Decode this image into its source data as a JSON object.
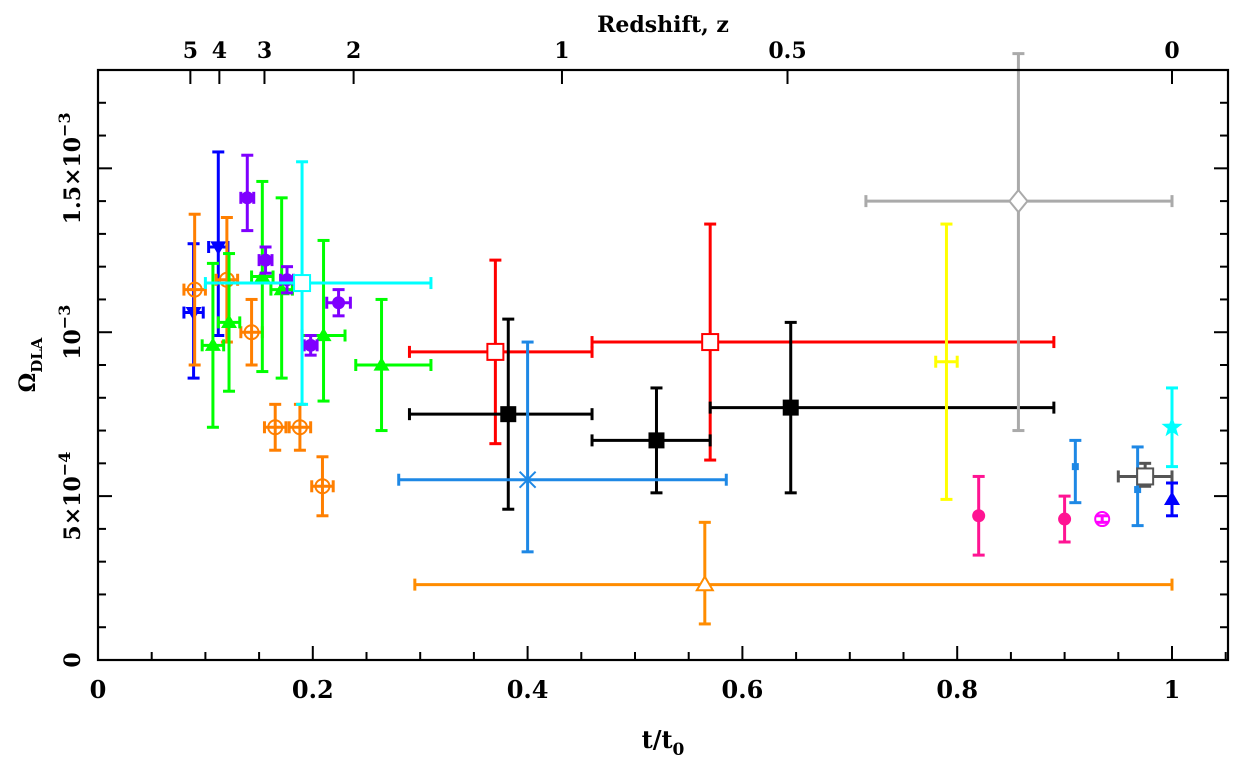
{
  "chart_data": {
    "type": "scatter",
    "title": "",
    "xlabel": "t/t",
    "xlabel_sub": "0",
    "ylabel": "Ω",
    "ylabel_sub": "DLA",
    "top_axis_label": "Redshift, z",
    "xlim": [
      0,
      1.05
    ],
    "ylim": [
      0,
      0.0018
    ],
    "grid": false,
    "legend": "none",
    "x_ticks": [
      {
        "value": 0,
        "label": "0"
      },
      {
        "value": 0.2,
        "label": "0.2"
      },
      {
        "value": 0.4,
        "label": "0.4"
      },
      {
        "value": 0.6,
        "label": "0.6"
      },
      {
        "value": 0.8,
        "label": "0.8"
      },
      {
        "value": 1.0,
        "label": "1"
      }
    ],
    "y_ticks": [
      {
        "value": 0,
        "base": "0",
        "exp": ""
      },
      {
        "value": 0.0005,
        "base": "5×10",
        "exp": "−4"
      },
      {
        "value": 0.001,
        "base": "10",
        "exp": "−3"
      },
      {
        "value": 0.0015,
        "base": "1.5×10",
        "exp": "−3"
      }
    ],
    "top_ticks": [
      {
        "t": 0.086,
        "label": "5"
      },
      {
        "t": 0.113,
        "label": "4"
      },
      {
        "t": 0.155,
        "label": "3"
      },
      {
        "t": 0.238,
        "label": "2"
      },
      {
        "t": 0.432,
        "label": "1"
      },
      {
        "t": 0.642,
        "label": "0.5"
      },
      {
        "t": 1.0,
        "label": "0"
      }
    ],
    "series": [
      {
        "color": "#0000ff",
        "marker": "tri-down-filled",
        "points": [
          {
            "x": 0.089,
            "y": 0.00106,
            "xerr": [
              0.009,
              0.009
            ],
            "yerr": [
              0.0002,
              0.00021
            ]
          },
          {
            "x": 0.112,
            "y": 0.00126,
            "xerr": [
              0.009,
              0.009
            ],
            "yerr": [
              0.00027,
              0.00029
            ]
          }
        ]
      },
      {
        "color": "#ff7f00",
        "marker": "circle-open",
        "points": [
          {
            "x": 0.09,
            "y": 0.00113,
            "xerr": [
              0.01,
              0.01
            ],
            "yerr": [
              0.00023,
              0.00023
            ]
          },
          {
            "x": 0.12,
            "y": 0.00116,
            "xerr": [
              0.01,
              0.01
            ],
            "yerr": [
              0.00019,
              0.00019
            ]
          },
          {
            "x": 0.143,
            "y": 0.001,
            "xerr": [
              0.01,
              0.01
            ],
            "yerr": [
              0.0001,
              0.0001
            ]
          },
          {
            "x": 0.165,
            "y": 0.00071,
            "xerr": [
              0.01,
              0.01
            ],
            "yerr": [
              7e-05,
              7e-05
            ]
          },
          {
            "x": 0.188,
            "y": 0.00071,
            "xerr": [
              0.01,
              0.01
            ],
            "yerr": [
              7e-05,
              7e-05
            ]
          },
          {
            "x": 0.209,
            "y": 0.00053,
            "xerr": [
              0.01,
              0.01
            ],
            "yerr": [
              9e-05,
              9e-05
            ]
          }
        ]
      },
      {
        "color": "#00ff00",
        "marker": "tri-up-filled",
        "points": [
          {
            "x": 0.107,
            "y": 0.00096,
            "xerr": [
              0.01,
              0.01
            ],
            "yerr": [
              0.00025,
              0.00025
            ]
          },
          {
            "x": 0.122,
            "y": 0.00103,
            "xerr": [
              0.01,
              0.01
            ],
            "yerr": [
              0.00021,
              0.00021
            ]
          },
          {
            "x": 0.153,
            "y": 0.00117,
            "xerr": [
              0.01,
              0.01
            ],
            "yerr": [
              0.00029,
              0.00029
            ]
          },
          {
            "x": 0.171,
            "y": 0.00113,
            "xerr": [
              0.01,
              0.01
            ],
            "yerr": [
              0.00027,
              0.00028
            ]
          },
          {
            "x": 0.21,
            "y": 0.00099,
            "xerr": [
              0.02,
              0.02
            ],
            "yerr": [
              0.0002,
              0.00029
            ]
          },
          {
            "x": 0.264,
            "y": 0.0009,
            "xerr": [
              0.024,
              0.046
            ],
            "yerr": [
              0.0002,
              0.0002
            ]
          }
        ]
      },
      {
        "color": "#7f00ff",
        "marker": "circle-filled",
        "points": [
          {
            "x": 0.139,
            "y": 0.00141,
            "xerr": [
              0.006,
              0.006
            ],
            "yerr": [
              0.0001,
              0.00013
            ]
          },
          {
            "x": 0.156,
            "y": 0.00122,
            "xerr": [
              0.006,
              0.006
            ],
            "yerr": [
              4e-05,
              4e-05
            ]
          },
          {
            "x": 0.176,
            "y": 0.00116,
            "xerr": [
              0.006,
              0.006
            ],
            "yerr": [
              4e-05,
              4e-05
            ]
          },
          {
            "x": 0.198,
            "y": 0.00096,
            "xerr": [
              0.006,
              0.006
            ],
            "yerr": [
              3e-05,
              3e-05
            ]
          },
          {
            "x": 0.224,
            "y": 0.00109,
            "xerr": [
              0.011,
              0.011
            ],
            "yerr": [
              4e-05,
              4e-05
            ]
          }
        ]
      },
      {
        "color": "#00ffff",
        "marker": "square-open",
        "points": [
          {
            "x": 0.19,
            "y": 0.00115,
            "xerr": [
              0.09,
              0.12
            ],
            "yerr": [
              0.00037,
              0.00037
            ]
          }
        ]
      },
      {
        "color": "#ff0000",
        "marker": "square-open",
        "points": [
          {
            "x": 0.37,
            "y": 0.00094,
            "xerr": [
              0.08,
              0.09
            ],
            "yerr": [
              0.00028,
              0.00028
            ]
          },
          {
            "x": 0.57,
            "y": 0.00097,
            "xerr": [
              0.11,
              0.32
            ],
            "yerr": [
              0.00036,
              0.00036
            ]
          }
        ]
      },
      {
        "color": "#000000",
        "marker": "square-filled",
        "points": [
          {
            "x": 0.382,
            "y": 0.00075,
            "xerr": [
              0.092,
              0.078
            ],
            "yerr": [
              0.00029,
              0.00029
            ]
          },
          {
            "x": 0.52,
            "y": 0.00067,
            "xerr": [
              0.06,
              0.05
            ],
            "yerr": [
              0.00016,
              0.00016
            ]
          },
          {
            "x": 0.645,
            "y": 0.00077,
            "xerr": [
              0.075,
              0.245
            ],
            "yerr": [
              0.00026,
              0.00026
            ]
          }
        ]
      },
      {
        "color": "#1e88e5",
        "marker": "star-cross",
        "points": [
          {
            "x": 0.4,
            "y": 0.00055,
            "xerr": [
              0.12,
              0.185
            ],
            "yerr": [
              0.00022,
              0.00042
            ]
          }
        ]
      },
      {
        "color": "#ff8c00",
        "marker": "tri-up-open",
        "points": [
          {
            "x": 0.565,
            "y": 0.00023,
            "xerr": [
              0.27,
              0.435
            ],
            "yerr": [
              0.00012,
              0.00019
            ]
          }
        ]
      },
      {
        "color": "#ffff00",
        "marker": "plus",
        "points": [
          {
            "x": 0.79,
            "y": 0.00091,
            "xerr": [
              0.01,
              0.01
            ],
            "yerr": [
              0.00042,
              0.00042
            ]
          }
        ]
      },
      {
        "color": "#aaaaaa",
        "marker": "diamond-open",
        "points": [
          {
            "x": 0.857,
            "y": 0.0014,
            "xerr": [
              0.142,
              0.143
            ],
            "yerr": [
              0.0007,
              0.00045
            ]
          }
        ]
      },
      {
        "color": "#ff1493",
        "marker": "circle-filled",
        "points": [
          {
            "x": 0.82,
            "y": 0.00044,
            "xerr": [
              0,
              0
            ],
            "yerr": [
              0.00012,
              0.00012
            ]
          },
          {
            "x": 0.9,
            "y": 0.00043,
            "xerr": [
              0,
              0
            ],
            "yerr": [
              7e-05,
              7e-05
            ]
          }
        ]
      },
      {
        "color": "#ff00ff",
        "marker": "circle-open",
        "points": [
          {
            "x": 0.935,
            "y": 0.00043,
            "xerr": [
              0,
              0
            ],
            "yerr": [
              1e-05,
              1e-05
            ]
          }
        ]
      },
      {
        "color": "#1e88e5",
        "marker": "square-filled-small",
        "points": [
          {
            "x": 0.91,
            "y": 0.00059,
            "xerr": [
              0,
              0
            ],
            "yerr": [
              0.00011,
              8e-05
            ]
          },
          {
            "x": 0.968,
            "y": 0.00052,
            "xerr": [
              0,
              0
            ],
            "yerr": [
              0.00011,
              0.00013
            ]
          }
        ]
      },
      {
        "color": "#555555",
        "marker": "square-open",
        "points": [
          {
            "x": 0.975,
            "y": 0.00056,
            "xerr": [
              0.025,
              0.025
            ],
            "yerr": [
              3e-05,
              4e-05
            ]
          }
        ]
      },
      {
        "color": "#00ffff",
        "marker": "star-filled",
        "points": [
          {
            "x": 1.0,
            "y": 0.00071,
            "xerr": [
              0,
              0
            ],
            "yerr": [
              0.00012,
              0.00012
            ]
          }
        ]
      },
      {
        "color": "#0000ff",
        "marker": "tri-up-filled",
        "points": [
          {
            "x": 1.0,
            "y": 0.00049,
            "xerr": [
              0,
              0
            ],
            "yerr": [
              5e-05,
              5e-05
            ]
          }
        ]
      }
    ]
  }
}
